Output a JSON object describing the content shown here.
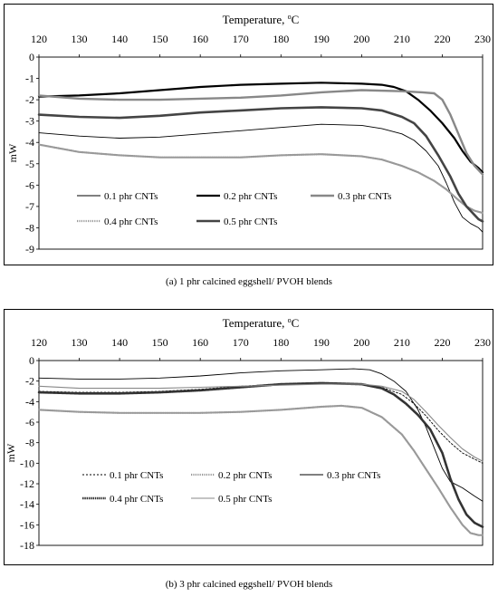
{
  "chart_data": [
    {
      "type": "line",
      "xlabel": "Temperature, ",
      "xlabel_unit": "C",
      "xlabel_degree": "o",
      "ylabel": "mW",
      "xlim": [
        120,
        230
      ],
      "ylim": [
        -9,
        0
      ],
      "xticks": [
        120,
        130,
        140,
        150,
        160,
        170,
        180,
        190,
        200,
        210,
        220,
        230
      ],
      "yticks": [
        0,
        -1,
        -2,
        -3,
        -4,
        -5,
        -6,
        -7,
        -8,
        -9
      ],
      "x_axis_position": "top",
      "legend_position": "bottom-inside",
      "caption": "(a)  1 phr calcined eggshell/ PVOH blends",
      "series": [
        {
          "name": "0.1 phr CNTs",
          "style": "thin",
          "color": "#000000",
          "x": [
            120,
            130,
            140,
            150,
            160,
            170,
            180,
            190,
            200,
            205,
            210,
            213,
            216,
            219,
            221,
            223,
            225,
            227,
            229,
            230
          ],
          "y": [
            -3.55,
            -3.7,
            -3.8,
            -3.75,
            -3.6,
            -3.45,
            -3.3,
            -3.15,
            -3.2,
            -3.35,
            -3.6,
            -3.9,
            -4.4,
            -5.1,
            -5.9,
            -6.8,
            -7.5,
            -7.8,
            -8.0,
            -8.2
          ]
        },
        {
          "name": "0.2 phr CNTs",
          "style": "bold",
          "color": "#000000",
          "x": [
            120,
            130,
            140,
            150,
            160,
            170,
            180,
            190,
            200,
            205,
            208,
            211,
            214,
            217,
            220,
            223,
            225,
            227,
            229,
            230
          ],
          "y": [
            -1.85,
            -1.8,
            -1.7,
            -1.55,
            -1.4,
            -1.3,
            -1.25,
            -1.2,
            -1.25,
            -1.3,
            -1.4,
            -1.6,
            -2.0,
            -2.5,
            -3.1,
            -3.8,
            -4.4,
            -4.9,
            -5.2,
            -5.4
          ]
        },
        {
          "name": "0.3 phr CNTs",
          "style": "thick-gray",
          "color": "#888888",
          "x": [
            120,
            130,
            140,
            150,
            160,
            170,
            180,
            190,
            200,
            210,
            215,
            218,
            220,
            222,
            224,
            226,
            228,
            230
          ],
          "y": [
            -1.8,
            -1.95,
            -2.0,
            -2.0,
            -1.95,
            -1.9,
            -1.8,
            -1.65,
            -1.55,
            -1.6,
            -1.65,
            -1.7,
            -2.0,
            -2.7,
            -3.6,
            -4.5,
            -5.1,
            -5.5
          ]
        },
        {
          "name": "0.4 phr CNTs",
          "style": "dotted-gray",
          "color": "#999999",
          "x": [
            120,
            130,
            140,
            150,
            160,
            170,
            180,
            190,
            200,
            205,
            210,
            214,
            218,
            221,
            224,
            226,
            228,
            230
          ],
          "y": [
            -4.1,
            -4.45,
            -4.6,
            -4.7,
            -4.7,
            -4.7,
            -4.6,
            -4.55,
            -4.65,
            -4.8,
            -5.1,
            -5.4,
            -5.8,
            -6.2,
            -6.7,
            -7.0,
            -7.2,
            -7.3
          ]
        },
        {
          "name": "0.5 phr CNTs",
          "style": "thick-dark",
          "color": "#444444",
          "x": [
            120,
            130,
            140,
            150,
            160,
            170,
            180,
            190,
            200,
            205,
            210,
            213,
            216,
            219,
            222,
            224,
            226,
            228,
            229,
            230
          ],
          "y": [
            -2.7,
            -2.8,
            -2.85,
            -2.75,
            -2.6,
            -2.5,
            -2.4,
            -2.35,
            -2.4,
            -2.5,
            -2.8,
            -3.1,
            -3.7,
            -4.6,
            -5.6,
            -6.4,
            -7.0,
            -7.4,
            -7.6,
            -7.7
          ]
        }
      ]
    },
    {
      "type": "line",
      "xlabel": "Temperature, ",
      "xlabel_unit": "C",
      "xlabel_degree": "o",
      "ylabel": "mW",
      "xlim": [
        120,
        230
      ],
      "ylim": [
        -18,
        0
      ],
      "xticks": [
        120,
        130,
        140,
        150,
        160,
        170,
        180,
        190,
        200,
        210,
        220,
        230
      ],
      "yticks": [
        0,
        -2,
        -4,
        -6,
        -8,
        -10,
        -12,
        -14,
        -16,
        -18
      ],
      "x_axis_position": "top",
      "legend_position": "bottom-inside",
      "caption": "(b) 3 phr calcined eggshell/ PVOH blends",
      "series": [
        {
          "name": "0.1 phr CNTs",
          "style": "dashed",
          "color": "#000000",
          "x": [
            120,
            130,
            140,
            150,
            160,
            170,
            180,
            190,
            200,
            205,
            210,
            213,
            216,
            219,
            222,
            225,
            228,
            230
          ],
          "y": [
            -3.0,
            -3.1,
            -3.1,
            -3.0,
            -2.8,
            -2.5,
            -2.3,
            -2.2,
            -2.3,
            -2.6,
            -3.3,
            -4.2,
            -5.4,
            -6.8,
            -8.0,
            -9.0,
            -9.6,
            -10.0
          ]
        },
        {
          "name": "0.2 phr CNTs",
          "style": "dotted-gray",
          "color": "#999999",
          "x": [
            120,
            130,
            140,
            150,
            160,
            170,
            180,
            190,
            195,
            200,
            205,
            210,
            213,
            216,
            219,
            222,
            225,
            227,
            229,
            230
          ],
          "y": [
            -4.8,
            -5.0,
            -5.1,
            -5.1,
            -5.1,
            -5.0,
            -4.8,
            -4.5,
            -4.4,
            -4.6,
            -5.5,
            -7.2,
            -8.8,
            -10.6,
            -12.4,
            -14.3,
            -16.0,
            -16.8,
            -17.0,
            -17.0
          ]
        },
        {
          "name": "0.3 phr CNTs",
          "style": "thin",
          "color": "#000000",
          "x": [
            120,
            130,
            140,
            150,
            160,
            170,
            180,
            190,
            198,
            202,
            205,
            208,
            211,
            214,
            216,
            218,
            220,
            222,
            225,
            228,
            230
          ],
          "y": [
            -1.7,
            -1.8,
            -1.8,
            -1.7,
            -1.5,
            -1.2,
            -1.0,
            -0.9,
            -0.8,
            -0.9,
            -1.3,
            -2.0,
            -3.0,
            -4.8,
            -6.5,
            -8.5,
            -10.5,
            -11.8,
            -12.4,
            -13.2,
            -13.7
          ]
        },
        {
          "name": "0.4 phr CNTs",
          "style": "bold-dotted",
          "color": "#333333",
          "x": [
            120,
            130,
            140,
            150,
            160,
            170,
            180,
            190,
            200,
            205,
            208,
            211,
            214,
            217,
            220,
            222,
            224,
            226,
            228,
            230
          ],
          "y": [
            -3.1,
            -3.2,
            -3.2,
            -3.1,
            -2.9,
            -2.6,
            -2.3,
            -2.2,
            -2.3,
            -2.7,
            -3.3,
            -4.2,
            -5.3,
            -6.7,
            -9.0,
            -11.5,
            -13.5,
            -15.0,
            -15.8,
            -16.2
          ]
        },
        {
          "name": "0.5 phr CNTs",
          "style": "thin-gray",
          "color": "#888888",
          "x": [
            120,
            130,
            140,
            150,
            160,
            170,
            180,
            190,
            200,
            205,
            210,
            213,
            216,
            219,
            222,
            225,
            228,
            230
          ],
          "y": [
            -2.5,
            -2.7,
            -2.7,
            -2.7,
            -2.6,
            -2.5,
            -2.4,
            -2.3,
            -2.3,
            -2.5,
            -3.0,
            -3.8,
            -5.0,
            -6.3,
            -7.5,
            -8.6,
            -9.4,
            -9.8
          ]
        }
      ]
    }
  ]
}
